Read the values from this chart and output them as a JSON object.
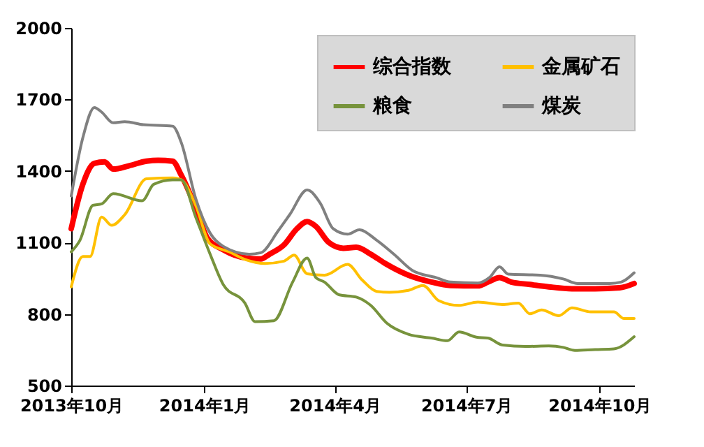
{
  "chart_data": {
    "type": "line",
    "xlim": [
      "2013-10-01",
      "2014-10-25"
    ],
    "xticks": [
      {
        "value": "2013-10-01",
        "label": "2013年10月"
      },
      {
        "value": "2014-01-01",
        "label": "2014年1月"
      },
      {
        "value": "2014-04-01",
        "label": "2014年4月"
      },
      {
        "value": "2014-07-01",
        "label": "2014年7月"
      },
      {
        "value": "2014-10-01",
        "label": "2014年10月"
      }
    ],
    "ylim": [
      500,
      2000
    ],
    "yticks": [
      500,
      800,
      1100,
      1400,
      1700,
      2000
    ],
    "grid": false,
    "legend": "top right",
    "series": [
      {
        "name": "综合指数",
        "color": "#ff0000",
        "x": [
          "2013-10-01",
          "2013-10-09",
          "2013-10-17",
          "2013-10-24",
          "2013-10-30",
          "2013-11-10",
          "2013-11-22",
          "2013-11-30",
          "2013-12-10",
          "2013-12-16",
          "2013-12-26",
          "2014-01-03",
          "2014-01-14",
          "2014-01-30",
          "2014-02-09",
          "2014-02-15",
          "2014-02-25",
          "2014-03-06",
          "2014-03-13",
          "2014-03-19",
          "2014-03-28",
          "2014-04-07",
          "2014-04-16",
          "2014-04-26",
          "2014-05-06",
          "2014-05-22",
          "2014-06-07",
          "2014-06-20",
          "2014-07-09",
          "2014-07-16",
          "2014-07-24",
          "2014-08-01",
          "2014-08-14",
          "2014-08-27",
          "2014-09-12",
          "2014-09-28",
          "2014-10-15",
          "2014-10-25"
        ],
        "values": [
          1158,
          1344,
          1432,
          1438,
          1408,
          1422,
          1441,
          1445,
          1441,
          1383,
          1246,
          1119,
          1070,
          1035,
          1031,
          1051,
          1090,
          1158,
          1188,
          1168,
          1100,
          1076,
          1080,
          1051,
          1012,
          963,
          934,
          920,
          918,
          934,
          953,
          934,
          924,
          914,
          906,
          906,
          910,
          928
        ]
      },
      {
        "name": "金属矿石",
        "color": "#ffc000",
        "x": [
          "2013-10-01",
          "2013-10-09",
          "2013-10-14",
          "2013-10-22",
          "2013-10-29",
          "2013-11-07",
          "2013-11-22",
          "2013-12-10",
          "2013-12-16",
          "2013-12-26",
          "2014-01-05",
          "2014-01-18",
          "2014-01-30",
          "2014-02-12",
          "2014-02-25",
          "2014-03-04",
          "2014-03-13",
          "2014-03-25",
          "2014-04-10",
          "2014-04-20",
          "2014-04-30",
          "2014-05-09",
          "2014-05-22",
          "2014-06-01",
          "2014-06-12",
          "2014-06-26",
          "2014-07-09",
          "2014-07-26",
          "2014-08-06",
          "2014-08-14",
          "2014-08-22",
          "2014-09-03",
          "2014-09-12",
          "2014-09-25",
          "2014-10-11",
          "2014-10-18",
          "2014-10-25"
        ],
        "values": [
          914,
          1041,
          1041,
          1207,
          1172,
          1217,
          1367,
          1371,
          1363,
          1256,
          1094,
          1061,
          1027,
          1012,
          1022,
          1047,
          969,
          963,
          1008,
          943,
          895,
          891,
          899,
          920,
          856,
          836,
          850,
          840,
          846,
          801,
          817,
          793,
          826,
          809,
          809,
          781,
          781
        ]
      },
      {
        "name": "粮食",
        "color": "#77933c",
        "x": [
          "2013-10-01",
          "2013-10-07",
          "2013-10-16",
          "2013-10-22",
          "2013-10-30",
          "2013-11-19",
          "2013-11-27",
          "2013-12-10",
          "2013-12-16",
          "2013-12-26",
          "2014-01-05",
          "2014-01-14",
          "2014-01-29",
          "2014-02-05",
          "2014-02-18",
          "2014-03-03",
          "2014-03-13",
          "2014-03-19",
          "2014-03-25",
          "2014-04-04",
          "2014-04-16",
          "2014-04-26",
          "2014-05-07",
          "2014-05-22",
          "2014-06-07",
          "2014-06-18",
          "2014-06-26",
          "2014-07-08",
          "2014-07-16",
          "2014-07-26",
          "2014-08-11",
          "2014-08-27",
          "2014-09-06",
          "2014-09-14",
          "2014-09-28",
          "2014-10-11",
          "2014-10-25"
        ],
        "values": [
          1061,
          1109,
          1256,
          1262,
          1305,
          1275,
          1344,
          1363,
          1363,
          1207,
          1051,
          924,
          846,
          768,
          772,
          934,
          1035,
          953,
          934,
          881,
          871,
          836,
          762,
          715,
          699,
          688,
          725,
          703,
          699,
          670,
          664,
          666,
          660,
          647,
          651,
          654,
          705
        ]
      },
      {
        "name": "煤炭",
        "color": "#808080",
        "x": [
          "2013-10-01",
          "2013-10-09",
          "2013-10-17",
          "2013-10-22",
          "2013-10-30",
          "2013-11-07",
          "2013-11-20",
          "2013-12-10",
          "2013-12-16",
          "2013-12-26",
          "2014-01-05",
          "2014-01-14",
          "2014-02-01",
          "2014-02-09",
          "2014-02-21",
          "2014-03-01",
          "2014-03-13",
          "2014-03-22",
          "2014-03-31",
          "2014-04-10",
          "2014-04-18",
          "2014-04-30",
          "2014-05-12",
          "2014-05-25",
          "2014-06-10",
          "2014-06-20",
          "2014-07-09",
          "2014-07-17",
          "2014-07-24",
          "2014-07-30",
          "2014-08-21",
          "2014-09-06",
          "2014-09-16",
          "2014-10-08",
          "2014-10-16",
          "2014-10-25"
        ],
        "values": [
          1295,
          1539,
          1666,
          1647,
          1602,
          1607,
          1594,
          1588,
          1520,
          1285,
          1139,
          1084,
          1051,
          1057,
          1149,
          1217,
          1320,
          1266,
          1158,
          1135,
          1153,
          1110,
          1051,
          982,
          953,
          934,
          930,
          953,
          998,
          967,
          963,
          947,
          928,
          928,
          934,
          973
        ]
      }
    ]
  }
}
